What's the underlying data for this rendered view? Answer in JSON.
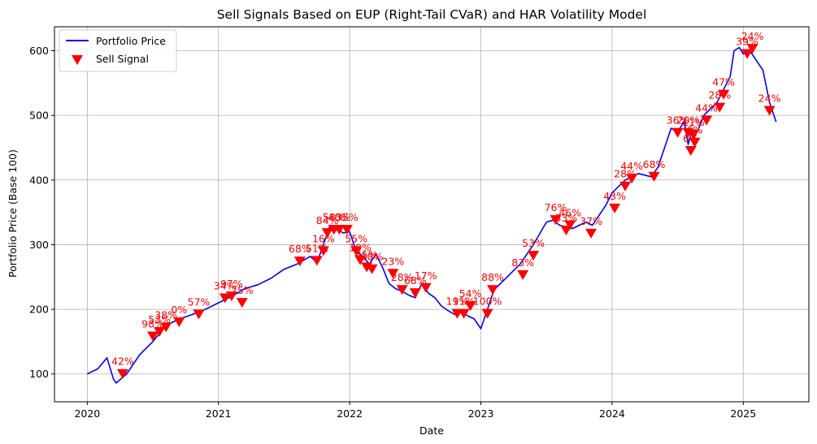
{
  "chart_data": {
    "type": "line",
    "title": "Sell Signals Based on EUP (Right-Tail CVaR) and HAR Volatility Model",
    "xlabel": "Date",
    "ylabel": "Portfolio Price (Base 100)",
    "xlim": [
      2019.75,
      2025.5
    ],
    "ylim": [
      57,
      637
    ],
    "x_ticks": [
      2020,
      2021,
      2022,
      2023,
      2024,
      2025
    ],
    "x_tick_labels": [
      "2020",
      "2021",
      "2022",
      "2023",
      "2024",
      "2025"
    ],
    "y_ticks": [
      100,
      200,
      300,
      400,
      500,
      600
    ],
    "y_tick_labels": [
      "100",
      "200",
      "300",
      "400",
      "500",
      "600"
    ],
    "grid": true,
    "legend": {
      "placement": "top-left",
      "entries": [
        "Portfolio Price",
        "Sell Signal"
      ]
    },
    "colors": {
      "line": "#0000ff",
      "signal": "#ff0000",
      "grid": "#b0b0b0"
    },
    "series": [
      {
        "name": "Portfolio Price",
        "x": [
          2020.0,
          2020.08,
          2020.15,
          2020.2,
          2020.22,
          2020.3,
          2020.4,
          2020.5,
          2020.6,
          2020.7,
          2020.8,
          2020.9,
          2021.0,
          2021.1,
          2021.2,
          2021.3,
          2021.4,
          2021.5,
          2021.6,
          2021.7,
          2021.75,
          2021.8,
          2021.85,
          2021.9,
          2021.95,
          2022.0,
          2022.05,
          2022.1,
          2022.15,
          2022.2,
          2022.25,
          2022.3,
          2022.35,
          2022.4,
          2022.45,
          2022.5,
          2022.55,
          2022.6,
          2022.65,
          2022.7,
          2022.75,
          2022.8,
          2022.85,
          2022.9,
          2022.95,
          2023.0,
          2023.05,
          2023.1,
          2023.2,
          2023.3,
          2023.4,
          2023.5,
          2023.55,
          2023.6,
          2023.7,
          2023.8,
          2023.85,
          2023.95,
          2024.0,
          2024.1,
          2024.2,
          2024.3,
          2024.35,
          2024.4,
          2024.45,
          2024.5,
          2024.55,
          2024.58,
          2024.6,
          2024.65,
          2024.7,
          2024.8,
          2024.85,
          2024.9,
          2024.93,
          2024.97,
          2025.0,
          2025.05,
          2025.1,
          2025.15,
          2025.2,
          2025.25
        ],
        "y": [
          100,
          108,
          125,
          92,
          86,
          100,
          130,
          150,
          175,
          185,
          192,
          200,
          210,
          220,
          232,
          238,
          248,
          262,
          270,
          282,
          272,
          300,
          330,
          325,
          318,
          320,
          290,
          282,
          270,
          285,
          265,
          240,
          232,
          228,
          222,
          218,
          240,
          225,
          218,
          205,
          198,
          192,
          196,
          190,
          185,
          170,
          200,
          230,
          250,
          270,
          300,
          335,
          338,
          330,
          325,
          335,
          330,
          360,
          380,
          400,
          410,
          405,
          420,
          450,
          480,
          475,
          490,
          455,
          470,
          475,
          500,
          520,
          540,
          560,
          600,
          605,
          595,
          600,
          585,
          570,
          520,
          490
        ]
      }
    ],
    "signals": [
      {
        "x": 2020.27,
        "y": 100,
        "label": "42%"
      },
      {
        "x": 2020.5,
        "y": 158,
        "label": "98%"
      },
      {
        "x": 2020.55,
        "y": 165,
        "label": "53%"
      },
      {
        "x": 2020.6,
        "y": 172,
        "label": "38%"
      },
      {
        "x": 2020.7,
        "y": 180,
        "label": "0%"
      },
      {
        "x": 2020.85,
        "y": 192,
        "label": "57%"
      },
      {
        "x": 2021.05,
        "y": 217,
        "label": "34%"
      },
      {
        "x": 2021.1,
        "y": 220,
        "label": "97%"
      },
      {
        "x": 2021.18,
        "y": 210,
        "label": "25%"
      },
      {
        "x": 2021.62,
        "y": 274,
        "label": "68%"
      },
      {
        "x": 2021.75,
        "y": 275,
        "label": "51%"
      },
      {
        "x": 2021.8,
        "y": 290,
        "label": "16%"
      },
      {
        "x": 2021.83,
        "y": 318,
        "label": "84%"
      },
      {
        "x": 2021.88,
        "y": 323,
        "label": "58%"
      },
      {
        "x": 2021.92,
        "y": 323,
        "label": "40%"
      },
      {
        "x": 2021.98,
        "y": 323,
        "label": "35%"
      },
      {
        "x": 2022.05,
        "y": 290,
        "label": "55%"
      },
      {
        "x": 2022.08,
        "y": 276,
        "label": "19%"
      },
      {
        "x": 2022.13,
        "y": 265,
        "label": "45%"
      },
      {
        "x": 2022.17,
        "y": 262,
        "label": "38%"
      },
      {
        "x": 2022.33,
        "y": 255,
        "label": "23%"
      },
      {
        "x": 2022.4,
        "y": 230,
        "label": "28%"
      },
      {
        "x": 2022.5,
        "y": 225,
        "label": "68%"
      },
      {
        "x": 2022.58,
        "y": 233,
        "label": "17%"
      },
      {
        "x": 2022.82,
        "y": 193,
        "label": "19%"
      },
      {
        "x": 2022.87,
        "y": 193,
        "label": "11%"
      },
      {
        "x": 2022.92,
        "y": 205,
        "label": "54%"
      },
      {
        "x": 2023.05,
        "y": 193,
        "label": "100%"
      },
      {
        "x": 2023.09,
        "y": 230,
        "label": "88%"
      },
      {
        "x": 2023.32,
        "y": 253,
        "label": "83%"
      },
      {
        "x": 2023.4,
        "y": 283,
        "label": "53%"
      },
      {
        "x": 2023.57,
        "y": 338,
        "label": "76%"
      },
      {
        "x": 2023.65,
        "y": 322,
        "label": "33%"
      },
      {
        "x": 2023.68,
        "y": 330,
        "label": "46%"
      },
      {
        "x": 2023.84,
        "y": 317,
        "label": "37%"
      },
      {
        "x": 2024.02,
        "y": 356,
        "label": "43%"
      },
      {
        "x": 2024.1,
        "y": 390,
        "label": "28%"
      },
      {
        "x": 2024.15,
        "y": 402,
        "label": "44%"
      },
      {
        "x": 2024.32,
        "y": 405,
        "label": "68%"
      },
      {
        "x": 2024.5,
        "y": 473,
        "label": "36%"
      },
      {
        "x": 2024.58,
        "y": 473,
        "label": "20%"
      },
      {
        "x": 2024.62,
        "y": 470,
        "label": "11%"
      },
      {
        "x": 2024.6,
        "y": 445,
        "label": "6%"
      },
      {
        "x": 2024.63,
        "y": 458,
        "label": "6%"
      },
      {
        "x": 2024.72,
        "y": 492,
        "label": "44%"
      },
      {
        "x": 2024.82,
        "y": 512,
        "label": "28%"
      },
      {
        "x": 2024.85,
        "y": 532,
        "label": "47%"
      },
      {
        "x": 2025.03,
        "y": 595,
        "label": "39%"
      },
      {
        "x": 2025.07,
        "y": 603,
        "label": "24%"
      },
      {
        "x": 2025.2,
        "y": 507,
        "label": "24%"
      }
    ]
  }
}
